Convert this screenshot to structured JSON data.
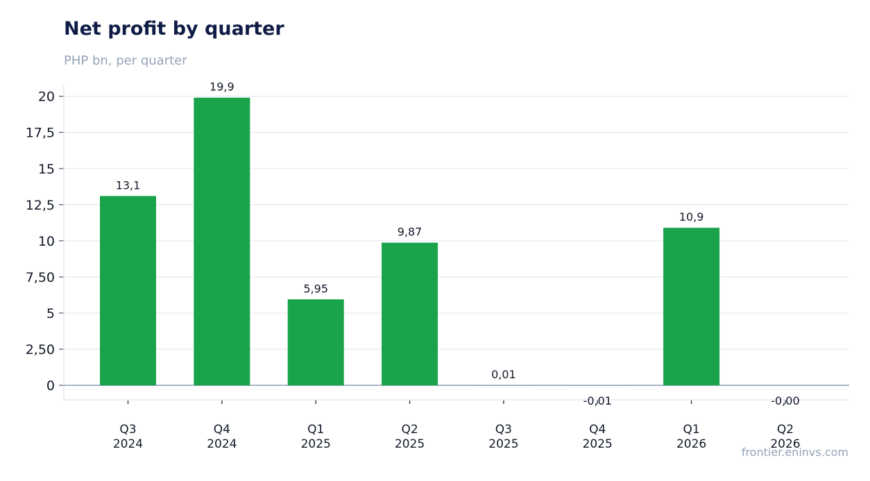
{
  "header": {
    "title": "Net profit by quarter",
    "subtitle": "PHP bn, per quarter"
  },
  "footer": {
    "source": "frontier.eninvs.com"
  },
  "colors": {
    "bar": "#19a34a",
    "grid": "#e2e8f0",
    "zero_line": "#94a3b8",
    "title": "#0f1c45",
    "muted": "#94a3b8",
    "text": "#111827"
  },
  "chart_data": {
    "type": "bar",
    "title": "Net profit by quarter",
    "subtitle": "PHP bn, per quarter",
    "xlabel": "",
    "ylabel": "",
    "categories": [
      [
        "Q3",
        "2024"
      ],
      [
        "Q4",
        "2024"
      ],
      [
        "Q1",
        "2025"
      ],
      [
        "Q2",
        "2025"
      ],
      [
        "Q3",
        "2025"
      ],
      [
        "Q4",
        "2025"
      ],
      [
        "Q1",
        "2026"
      ],
      [
        "Q2",
        "2026"
      ]
    ],
    "values": [
      13.1,
      19.9,
      5.95,
      9.87,
      0.01,
      -0.01,
      10.9,
      -0.001
    ],
    "value_labels": [
      "13,1",
      "19,9",
      "5,95",
      "9,87",
      "0,01",
      "-0,01",
      "10,9",
      "-0,00"
    ],
    "y_ticks": [
      0,
      2.5,
      5,
      7.5,
      10,
      12.5,
      15,
      17.5,
      20
    ],
    "y_tick_labels": [
      "0",
      "2,50",
      "5",
      "7,50",
      "10",
      "12,5",
      "15",
      "17,5",
      "20"
    ],
    "ylim": [
      -1,
      20.8
    ],
    "grid": true,
    "legend": "none"
  }
}
